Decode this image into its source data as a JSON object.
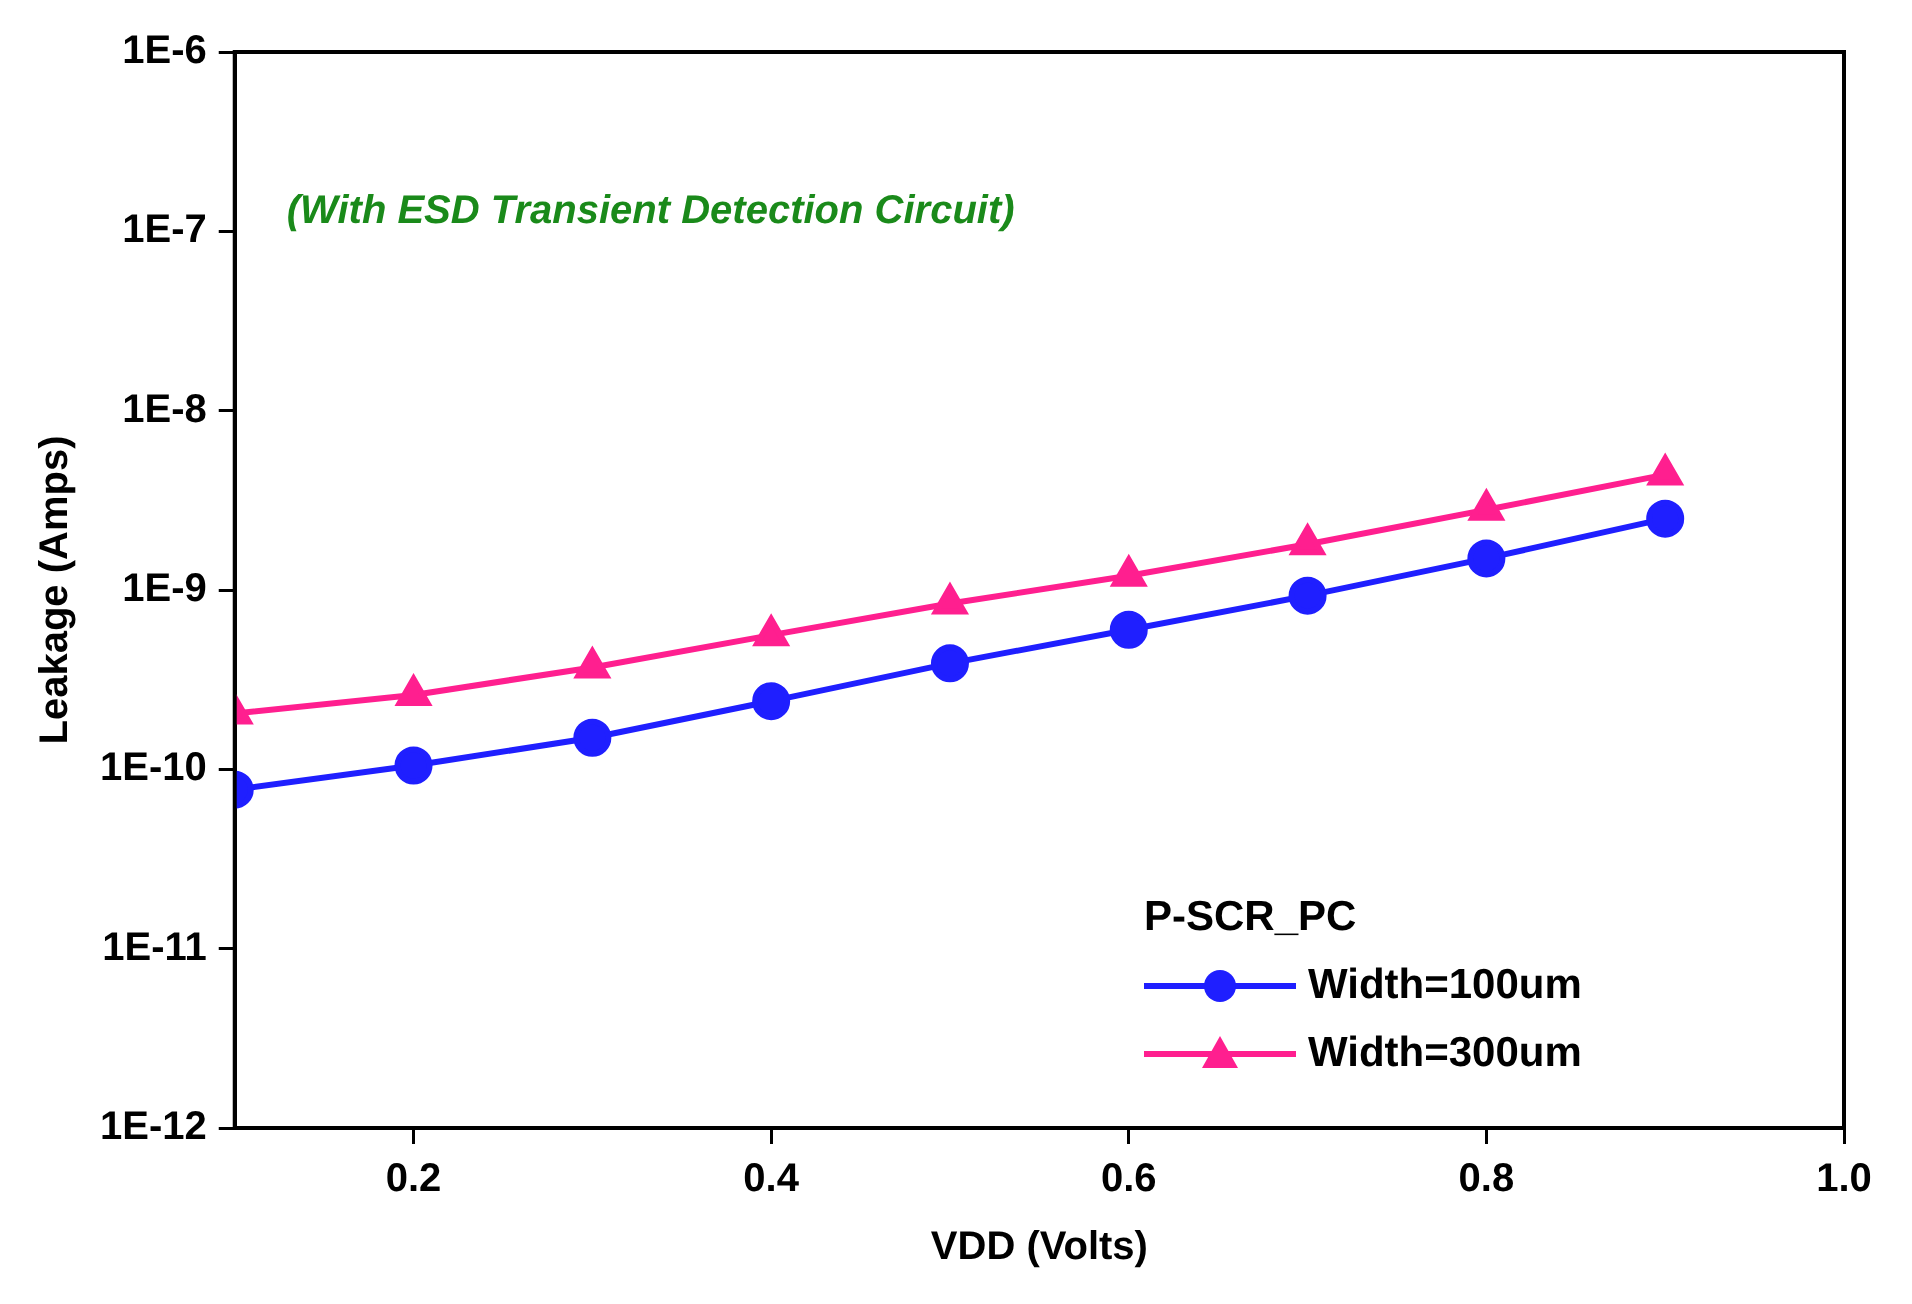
{
  "chart_data": {
    "type": "line",
    "xlabel": "VDD (Volts)",
    "ylabel": "Leakage (Amps)",
    "annotations": [
      "(With ESD Transient Detection Circuit)"
    ],
    "x": [
      0.1,
      0.2,
      0.3,
      0.4,
      0.5,
      0.6,
      0.7,
      0.8,
      0.9
    ],
    "series": [
      {
        "name": "Width=100um",
        "color": "#1f1fff",
        "marker": "circle",
        "values": [
          7.7e-11,
          1.05e-10,
          1.5e-10,
          2.4e-10,
          3.9e-10,
          6e-10,
          9.3e-10,
          1.5e-09,
          2.5e-09
        ]
      },
      {
        "name": "Width=300um",
        "color": "#ff1f8f",
        "marker": "triangle",
        "values": [
          2.05e-10,
          2.6e-10,
          3.7e-10,
          5.6e-10,
          8.4e-10,
          1.2e-09,
          1.8e-09,
          2.8e-09,
          4.4e-09
        ]
      }
    ],
    "legend_title": "P-SCR_PC",
    "legend": "bottom right",
    "log": "y",
    "grid": false,
    "xlim": [
      0.1,
      1.0
    ],
    "xticks": [
      0.2,
      0.4,
      0.6,
      0.8,
      {
        "value": 1.0,
        "label": "1.0"
      }
    ],
    "ylim": [
      1e-12,
      1e-06
    ],
    "yticks": [
      {
        "value": 1e-12,
        "label": "1E-12"
      },
      {
        "value": 1e-11,
        "label": "1E-11"
      },
      {
        "value": 1e-10,
        "label": "1E-10"
      },
      {
        "value": 1e-09,
        "label": "1E-9"
      },
      {
        "value": 1e-08,
        "label": "1E-8"
      },
      {
        "value": 1e-07,
        "label": "1E-7"
      },
      {
        "value": 1e-06,
        "label": "1E-6"
      }
    ]
  }
}
